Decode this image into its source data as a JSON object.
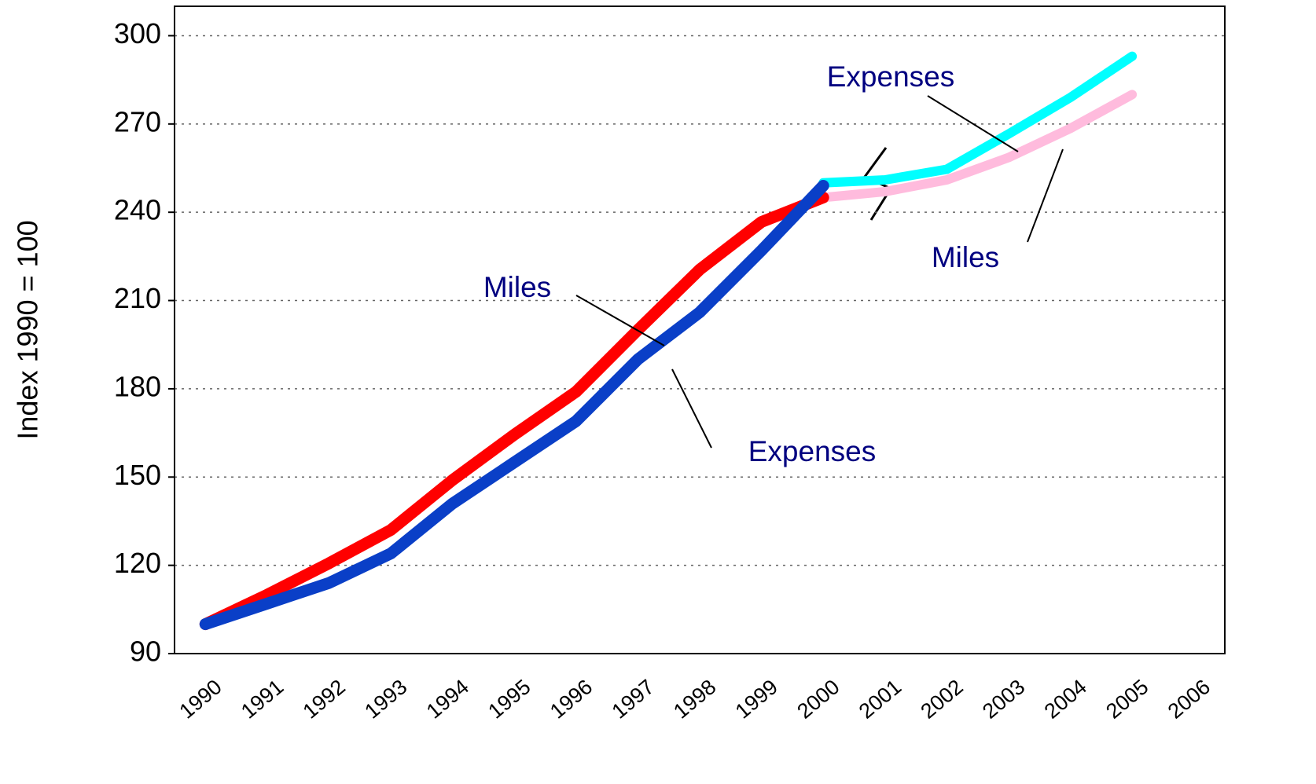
{
  "chart_data": {
    "type": "line",
    "y_label": "Index 1990 = 100",
    "categories": [
      "1990",
      "1991",
      "1992",
      "1993",
      "1994",
      "1995",
      "1996",
      "1997",
      "1998",
      "1999",
      "2000",
      "2001",
      "2002",
      "2003",
      "2004",
      "2005",
      "2006"
    ],
    "series": [
      {
        "name": "Miles",
        "color": "#ffbbdd",
        "values": [
          null,
          null,
          null,
          null,
          null,
          null,
          null,
          null,
          null,
          null,
          245,
          247,
          251,
          258.6,
          268.5,
          280,
          null
        ]
      },
      {
        "name": "Expenses",
        "color": "#00ffff",
        "values": [
          null,
          null,
          null,
          null,
          null,
          null,
          null,
          null,
          null,
          null,
          250,
          251,
          254.6,
          266.6,
          279,
          293,
          null
        ]
      },
      {
        "name": "Miles",
        "color": "#ff0000",
        "values": [
          100,
          110,
          120.7,
          132,
          149,
          164.4,
          179,
          200,
          220.5,
          236.7,
          245,
          null,
          null,
          null,
          null,
          null,
          null
        ]
      },
      {
        "name": "Expenses",
        "color": "#0a3fc7",
        "values": [
          100,
          107,
          114,
          124,
          141,
          155,
          169,
          190,
          206,
          227,
          249,
          null,
          null,
          null,
          null,
          null,
          null
        ]
      }
    ],
    "annotations": [
      "Expenses",
      "Miles",
      "Miles",
      "Expenses"
    ],
    "ylim": [
      90,
      310
    ],
    "yticks": [
      90,
      120,
      150,
      180,
      210,
      240,
      270,
      300
    ],
    "grid": true
  }
}
